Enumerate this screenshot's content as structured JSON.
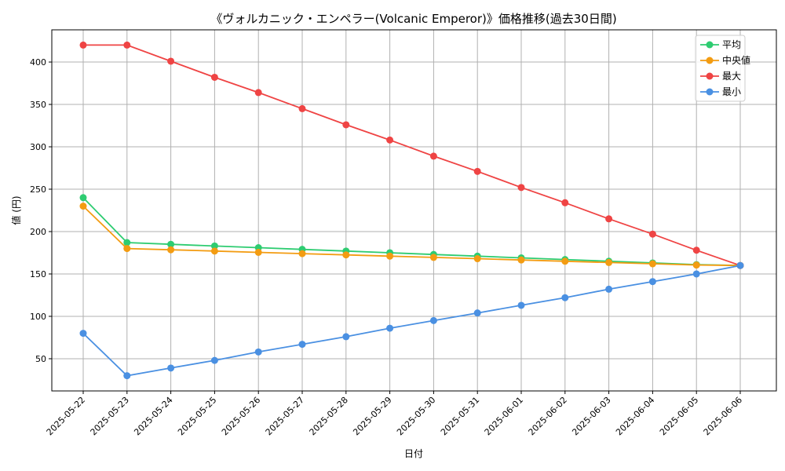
{
  "chart_data": {
    "type": "line",
    "title": "《ヴォルカニック・エンペラー(Volcanic Emperor)》価格推移(過去30日間)",
    "xlabel": "日付",
    "ylabel": "値 (円)",
    "ylim": [
      12,
      438
    ],
    "yticks": [
      50,
      100,
      150,
      200,
      250,
      300,
      350,
      400
    ],
    "grid": true,
    "legend_position": "top-right",
    "categories": [
      "2025-05-22",
      "2025-05-23",
      "2025-05-24",
      "2025-05-25",
      "2025-05-26",
      "2025-05-27",
      "2025-05-28",
      "2025-05-29",
      "2025-05-30",
      "2025-05-31",
      "2025-06-01",
      "2025-06-02",
      "2025-06-03",
      "2025-06-04",
      "2025-06-05",
      "2025-06-06"
    ],
    "series": [
      {
        "name": "平均",
        "color": "#2ecc71",
        "values": [
          240,
          187,
          185,
          183,
          181,
          179,
          177,
          175,
          173,
          171,
          169,
          167,
          165,
          163,
          161,
          160
        ]
      },
      {
        "name": "中央値",
        "color": "#f39c12",
        "values": [
          230,
          180,
          178.5,
          177,
          175.5,
          174,
          172.5,
          171,
          169.5,
          168,
          166.5,
          165,
          163.5,
          162,
          160.5,
          160
        ]
      },
      {
        "name": "最大",
        "color": "#ef4444",
        "values": [
          420,
          420,
          401,
          382,
          364,
          345,
          326,
          308,
          289,
          271,
          252,
          234,
          215,
          197,
          178,
          160
        ]
      },
      {
        "name": "最小",
        "color": "#4a90e2",
        "values": [
          80,
          30,
          39,
          48,
          58,
          67,
          76,
          86,
          95,
          104,
          113,
          122,
          132,
          141,
          150,
          160
        ]
      }
    ]
  }
}
